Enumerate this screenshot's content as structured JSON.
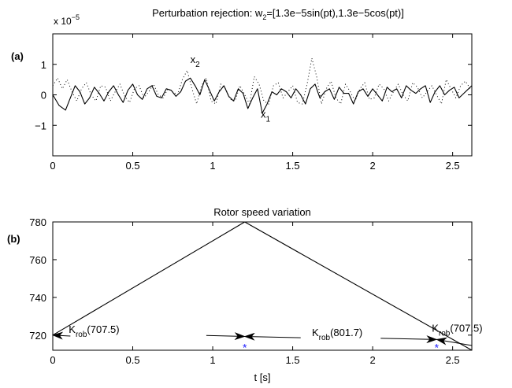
{
  "chart_data": [
    {
      "type": "line",
      "panel_label": "(a)",
      "title_prefix": "Perturbation rejection:  w",
      "title_sub": "2",
      "title_suffix": "=[1.3e−5sin(pt),1.3e−5cos(pt)]",
      "exponent_base": "x 10",
      "exponent_power": "−5",
      "xlim": [
        0,
        2.62
      ],
      "ylim": [
        -2,
        2
      ],
      "xticks": [
        0,
        0.5,
        1,
        1.5,
        2,
        2.5
      ],
      "xtick_labels": [
        "0",
        "0.5",
        "1",
        "1.5",
        "2",
        "2.5"
      ],
      "yticks": [
        -1,
        0,
        1
      ],
      "ytick_labels": [
        "−1",
        "0",
        "1"
      ],
      "grid": false,
      "annotations": [
        {
          "text": "x",
          "sub": "2",
          "x": 0.86,
          "y": 1.05
        },
        {
          "text": "x",
          "sub": "1",
          "x": 1.3,
          "y": -0.75
        }
      ],
      "series": [
        {
          "label": "x1",
          "style": "solid",
          "x": [
            0,
            0.04,
            0.08,
            0.11,
            0.14,
            0.17,
            0.2,
            0.23,
            0.26,
            0.29,
            0.32,
            0.35,
            0.38,
            0.41,
            0.44,
            0.47,
            0.5,
            0.53,
            0.56,
            0.59,
            0.62,
            0.65,
            0.68,
            0.71,
            0.74,
            0.77,
            0.8,
            0.83,
            0.86,
            0.89,
            0.92,
            0.95,
            0.98,
            1.01,
            1.04,
            1.07,
            1.1,
            1.13,
            1.16,
            1.19,
            1.22,
            1.25,
            1.28,
            1.31,
            1.34,
            1.37,
            1.4,
            1.43,
            1.46,
            1.49,
            1.52,
            1.55,
            1.58,
            1.61,
            1.64,
            1.67,
            1.7,
            1.73,
            1.76,
            1.79,
            1.82,
            1.85,
            1.88,
            1.91,
            1.94,
            1.97,
            2.0,
            2.03,
            2.06,
            2.09,
            2.12,
            2.15,
            2.18,
            2.21,
            2.24,
            2.27,
            2.3,
            2.33,
            2.36,
            2.39,
            2.42,
            2.45,
            2.48,
            2.51,
            2.54,
            2.57,
            2.6,
            2.62
          ],
          "y": [
            0,
            -0.35,
            -0.5,
            -0.1,
            0.3,
            0.1,
            -0.3,
            -0.1,
            0.25,
            0.05,
            -0.2,
            0.1,
            0.3,
            0.0,
            -0.25,
            0.15,
            0.35,
            0.0,
            -0.15,
            0.2,
            0.3,
            -0.05,
            -0.1,
            0.2,
            0.15,
            -0.05,
            0.1,
            0.45,
            0.55,
            0.3,
            0.0,
            0.5,
            0.15,
            -0.2,
            0.1,
            0.3,
            -0.05,
            -0.2,
            0.2,
            0.05,
            -0.45,
            -0.1,
            0.2,
            -0.6,
            -0.3,
            0.1,
            0.0,
            0.2,
            0.1,
            -0.1,
            0.2,
            0.0,
            -0.3,
            0.2,
            0.35,
            -0.1,
            0.1,
            0.2,
            -0.15,
            0.25,
            0.05,
            0.05,
            -0.3,
            0.1,
            0.2,
            -0.05,
            0.2,
            0.0,
            -0.2,
            0.25,
            0.1,
            0.2,
            -0.1,
            0.3,
            0.15,
            0.05,
            0.2,
            0.3,
            -0.25,
            0.1,
            0.3,
            0.0,
            0.15,
            0.25,
            -0.1,
            0.05,
            0.2,
            0.3
          ]
        },
        {
          "label": "x2",
          "style": "dotted",
          "x": [
            0,
            0.03,
            0.06,
            0.09,
            0.12,
            0.15,
            0.18,
            0.21,
            0.24,
            0.27,
            0.3,
            0.33,
            0.36,
            0.39,
            0.42,
            0.45,
            0.48,
            0.51,
            0.54,
            0.57,
            0.6,
            0.63,
            0.66,
            0.69,
            0.72,
            0.75,
            0.78,
            0.81,
            0.84,
            0.87,
            0.9,
            0.93,
            0.96,
            0.99,
            1.02,
            1.05,
            1.08,
            1.11,
            1.14,
            1.17,
            1.2,
            1.23,
            1.26,
            1.29,
            1.32,
            1.35,
            1.38,
            1.41,
            1.44,
            1.47,
            1.5,
            1.53,
            1.56,
            1.59,
            1.62,
            1.65,
            1.68,
            1.71,
            1.74,
            1.77,
            1.8,
            1.83,
            1.86,
            1.89,
            1.92,
            1.95,
            1.98,
            2.01,
            2.04,
            2.07,
            2.1,
            2.13,
            2.16,
            2.19,
            2.22,
            2.25,
            2.28,
            2.31,
            2.34,
            2.37,
            2.4,
            2.43,
            2.46,
            2.49,
            2.52,
            2.55,
            2.58,
            2.61
          ],
          "y": [
            0.3,
            0.55,
            0.2,
            0.5,
            0.1,
            -0.2,
            0.2,
            0.4,
            0.0,
            -0.2,
            0.3,
            0.25,
            -0.2,
            0.1,
            0.35,
            -0.05,
            -0.25,
            0.2,
            0.3,
            -0.1,
            0.1,
            0.35,
            0.0,
            -0.1,
            0.2,
            0.1,
            0.0,
            0.5,
            0.8,
            0.2,
            -0.3,
            0.3,
            0.55,
            -0.2,
            -0.3,
            0.35,
            0.2,
            -0.15,
            -0.2,
            0.3,
            0.0,
            -0.3,
            0.6,
            0.35,
            -0.2,
            -0.3,
            0.3,
            0.4,
            -0.1,
            0.1,
            0.3,
            -0.25,
            -0.3,
            0.35,
            1.2,
            0.6,
            -0.3,
            0.2,
            0.45,
            -0.1,
            -0.3,
            0.35,
            0.1,
            -0.2,
            0.2,
            0.4,
            -0.15,
            -0.1,
            0.35,
            0.2,
            -0.2,
            0.1,
            0.35,
            0.0,
            -0.2,
            0.4,
            0.25,
            -0.1,
            0.1,
            0.3,
            0.0,
            -0.3,
            0.5,
            0.2,
            -0.1,
            0.3,
            0.45,
            0.2
          ]
        }
      ]
    },
    {
      "type": "line",
      "panel_label": "(b)",
      "title": "Rotor speed variation",
      "xlabel": "t [s]",
      "xlim": [
        0,
        2.62
      ],
      "ylim": [
        712,
        780
      ],
      "xticks": [
        0,
        0.5,
        1,
        1.5,
        2,
        2.5
      ],
      "xtick_labels": [
        "0",
        "0.5",
        "1",
        "1.5",
        "2",
        "2.5"
      ],
      "yticks": [
        720,
        740,
        760,
        780
      ],
      "ytick_labels": [
        "720",
        "740",
        "760",
        "780"
      ],
      "grid": false,
      "series": [
        {
          "style": "solid",
          "x": [
            0,
            1.2,
            2.62
          ],
          "y": [
            720,
            780,
            712
          ]
        }
      ],
      "markers": [
        {
          "x": 1.2,
          "y": 713.5
        },
        {
          "x": 2.4,
          "y": 713.5
        }
      ],
      "annotations": [
        {
          "text": "K",
          "sub": "rob",
          "suffix": "(707.5)",
          "x": 0.1,
          "y": 721.2
        },
        {
          "text": "K",
          "sub": "rob",
          "suffix": "(801.7)",
          "x": 1.62,
          "y": 719.5
        },
        {
          "text": "K",
          "sub": "rob",
          "suffix": "(707.5)",
          "x": 2.37,
          "y": 721.7
        }
      ],
      "arrows": [
        {
          "x1": 0.11,
          "y1": 719.5,
          "x2": 0.0,
          "y2": 720.0
        },
        {
          "x1": 0.96,
          "y1": 719.8,
          "x2": 1.2,
          "y2": 719.3
        },
        {
          "x1": 1.55,
          "y1": 718.6,
          "x2": 1.2,
          "y2": 719.3
        },
        {
          "x1": 2.05,
          "y1": 718.3,
          "x2": 2.4,
          "y2": 717.7
        },
        {
          "x1": 2.62,
          "y1": 714.5,
          "x2": 2.4,
          "y2": 717.7
        }
      ]
    }
  ]
}
